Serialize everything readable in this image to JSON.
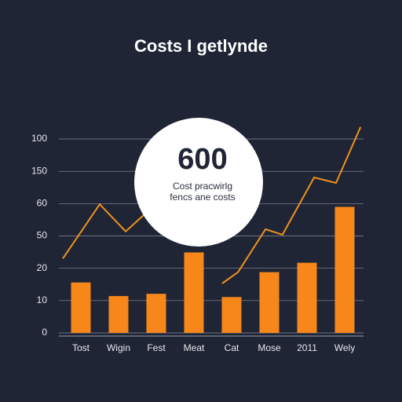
{
  "chart_data": {
    "type": "bar",
    "title": "Costs I getlynde",
    "categories": [
      "Tost",
      "Wigin",
      "Fest",
      "Meat",
      "Cat",
      "Mose",
      "2011",
      "Wely"
    ],
    "bars": {
      "values": [
        1.56,
        1.14,
        1.21,
        2.49,
        1.11,
        1.88,
        2.17,
        3.9
      ],
      "color": "#f7861b"
    },
    "line": {
      "x": [
        -0.48,
        0.5,
        1.19,
        1.67,
        2.7,
        3.75,
        4.17,
        4.9,
        5.35,
        6.19,
        6.77,
        7.42
      ],
      "values": [
        2.3,
        3.98,
        3.14,
        3.65,
        null,
        1.53,
        1.88,
        3.21,
        3.04,
        4.81,
        4.64,
        6.37
      ],
      "color": "#f0921e"
    },
    "ylim": [
      0,
      6.5
    ],
    "yticks": [
      {
        "value": 0,
        "label": "0"
      },
      {
        "value": 1,
        "label": "10"
      },
      {
        "value": 2,
        "label": "20"
      },
      {
        "value": 3,
        "label": "50"
      },
      {
        "value": 4,
        "label": "60"
      },
      {
        "value": 5,
        "label": "150"
      },
      {
        "value": 6,
        "label": "100"
      }
    ],
    "grid": true,
    "callout": {
      "value": 600,
      "lines": [
        "Cost pracwirlg",
        "fencs ane costs"
      ]
    }
  }
}
